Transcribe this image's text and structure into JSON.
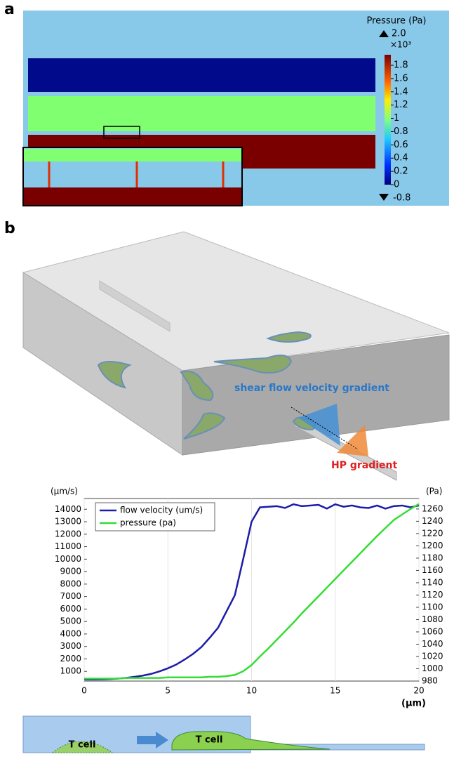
{
  "panel_a": {
    "label": "a",
    "colorbar": {
      "title": "Pressure (Pa)",
      "max": "2.0",
      "multiplier": "×10³",
      "min": "-0.8",
      "ticks": [
        0,
        0.2,
        0.4,
        0.6,
        0.8,
        1,
        1.2,
        1.4,
        1.6,
        1.8
      ]
    }
  },
  "panel_b": {
    "label": "b",
    "annotations": [
      "shear flow velocity gradient",
      "HP gradient"
    ]
  },
  "chart_data": {
    "type": "line",
    "y_unit": "(µm/s)",
    "y2_unit": "(Pa)",
    "x_label": "(µm)",
    "x": [
      0,
      0.5,
      1,
      1.5,
      2,
      2.5,
      3,
      3.5,
      4,
      4.5,
      5,
      5.5,
      6,
      6.5,
      7,
      7.5,
      8,
      8.5,
      9,
      9.5,
      10,
      10.5,
      11,
      11.5,
      12,
      12.5,
      13,
      13.5,
      14,
      14.5,
      15,
      15.5,
      16,
      16.5,
      17,
      17.5,
      18,
      18.5,
      19,
      19.5,
      20
    ],
    "series": [
      {
        "name": "flow velocity (um/s)",
        "color": "#1c1ca8",
        "values": [
          350,
          350,
          360,
          380,
          420,
          480,
          560,
          660,
          800,
          1000,
          1250,
          1550,
          1950,
          2400,
          2950,
          3700,
          4500,
          5800,
          7100,
          10000,
          13000,
          14150,
          14200,
          14250,
          14100,
          14400,
          14250,
          14300,
          14350,
          14050,
          14400,
          14200,
          14300,
          14150,
          14100,
          14300,
          14050,
          14250,
          14300,
          14150,
          14300
        ]
      },
      {
        "name": "pressure (pa)",
        "color": "#33dd33",
        "axis": "y2",
        "values": [
          984,
          984,
          984,
          984,
          984,
          985,
          985,
          985,
          985,
          985,
          986,
          986,
          986,
          986,
          986,
          987,
          987,
          988,
          990,
          996,
          1006,
          1020,
          1033,
          1047,
          1061,
          1075,
          1090,
          1104,
          1118,
          1132,
          1146,
          1160,
          1174,
          1188,
          1202,
          1216,
          1229,
          1242,
          1251,
          1260,
          1268
        ]
      }
    ],
    "xlim": [
      0,
      20
    ],
    "xticks": [
      0,
      5,
      10,
      15,
      20
    ],
    "ylim": [
      225,
      14860
    ],
    "yticks": [
      1000,
      2000,
      3000,
      4000,
      5000,
      6000,
      7000,
      8000,
      9000,
      10000,
      11000,
      12000,
      13000,
      14000
    ],
    "y2lim": [
      980,
      1277
    ],
    "y2ticks": [
      980,
      1000,
      1020,
      1040,
      1060,
      1080,
      1100,
      1120,
      1140,
      1160,
      1180,
      1200,
      1220,
      1240,
      1260
    ],
    "grid": true,
    "legend": "upper-left"
  },
  "schematic": {
    "labels": [
      "T cell",
      "T cell"
    ]
  }
}
